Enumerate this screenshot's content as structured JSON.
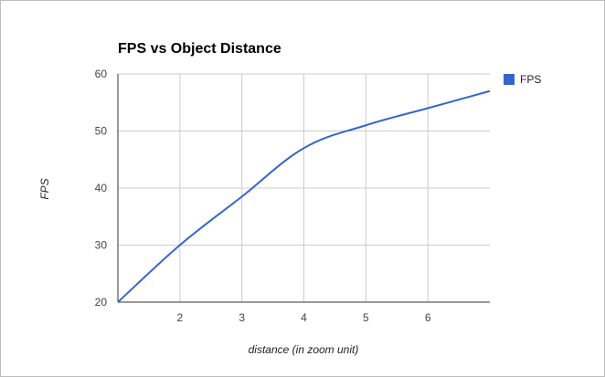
{
  "chart_data": {
    "type": "line",
    "title": "FPS vs Object Distance",
    "xlabel": "distance (in zoom unit)",
    "ylabel": "FPS",
    "xlim": [
      1,
      7
    ],
    "ylim": [
      20,
      60
    ],
    "x_ticks": [
      2,
      3,
      4,
      5,
      6
    ],
    "y_ticks": [
      20,
      30,
      40,
      50,
      60
    ],
    "grid": true,
    "legend": "right",
    "series": [
      {
        "name": "FPS",
        "color": "#3366cc",
        "x": [
          1,
          2,
          3,
          4,
          5,
          6,
          7
        ],
        "y": [
          20,
          30,
          38.5,
          47,
          51,
          54,
          57
        ]
      }
    ]
  }
}
